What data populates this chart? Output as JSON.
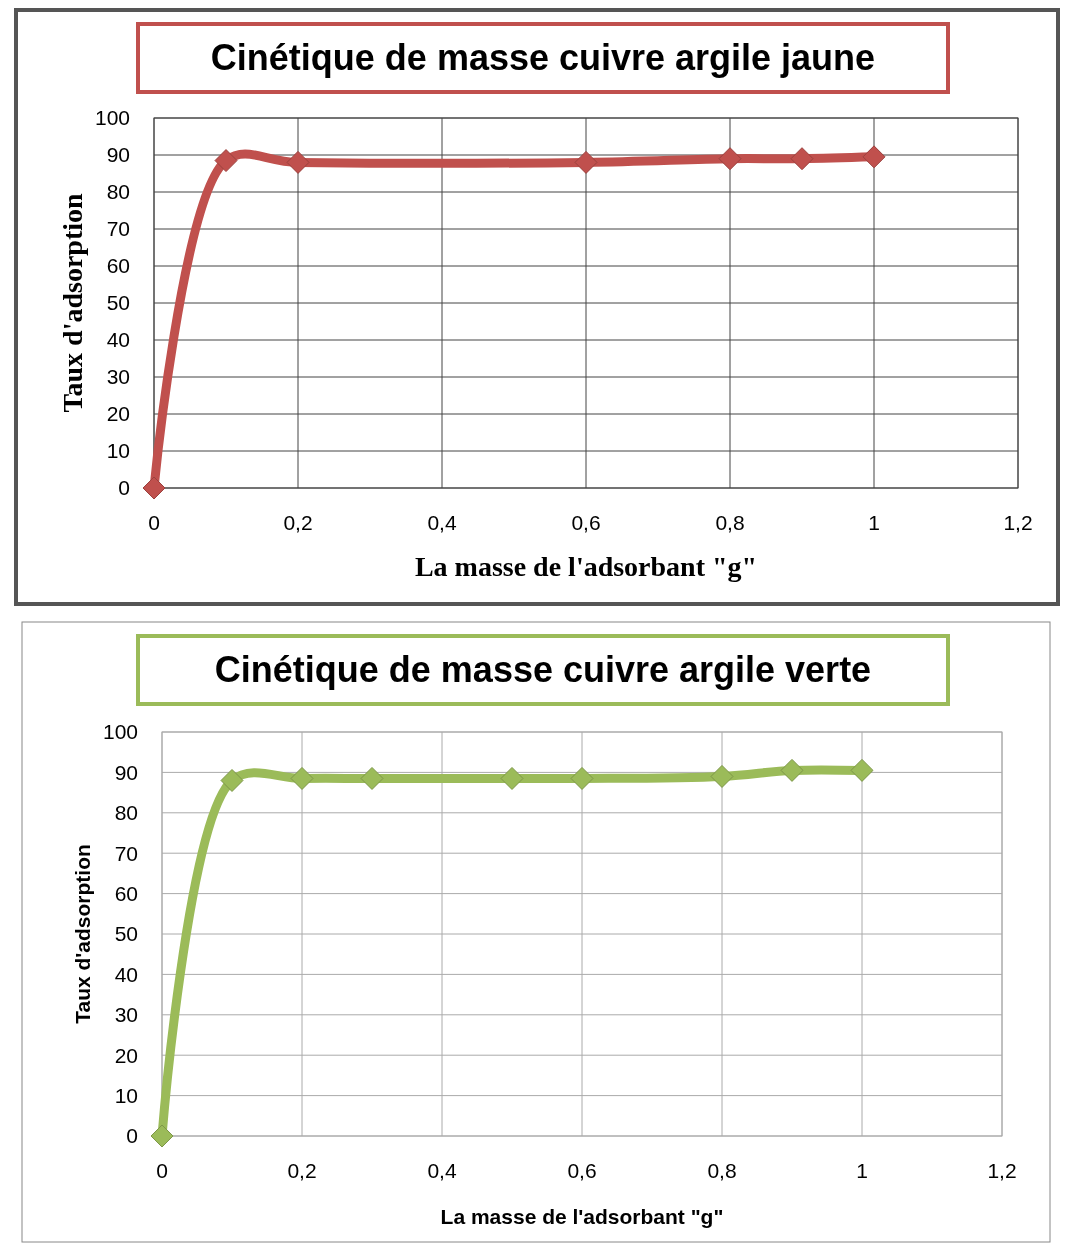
{
  "chart_data": [
    {
      "type": "line",
      "title": "Cinétique de masse cuivre argile jaune",
      "xlabel": "La masse de l'adsorbant \"g\"",
      "ylabel": "Taux d'adsorption",
      "x": [
        0,
        0.1,
        0.2,
        0.6,
        0.8,
        0.9,
        1
      ],
      "series": [
        {
          "color": "#c0504d",
          "values": [
            0,
            88.5,
            88,
            88,
            89,
            89,
            89.5
          ]
        }
      ],
      "xlim": [
        0,
        1.2
      ],
      "xticks": [
        {
          "value": 0,
          "label": "0"
        },
        {
          "value": 0.2,
          "label": "0,2"
        },
        {
          "value": 0.4,
          "label": "0,4"
        },
        {
          "value": 0.6,
          "label": "0,6"
        },
        {
          "value": 0.8,
          "label": "0,8"
        },
        {
          "value": 1,
          "label": "1"
        },
        {
          "value": 1.2,
          "label": "1,2"
        }
      ],
      "ylim": [
        0,
        100
      ],
      "yticks": [
        0,
        10,
        20,
        30,
        40,
        50,
        60,
        70,
        80,
        90,
        100
      ],
      "grid": true,
      "marker": "diamond"
    },
    {
      "type": "line",
      "title": "Cinétique de masse cuivre argile verte",
      "xlabel": "La masse de l'adsorbant \"g\"",
      "ylabel": "Taux d'adsorption",
      "x": [
        0,
        0.1,
        0.2,
        0.3,
        0.5,
        0.6,
        0.8,
        0.9,
        1
      ],
      "series": [
        {
          "color": "#9bbb59",
          "values": [
            0,
            88,
            88.5,
            88.5,
            88.5,
            88.5,
            89,
            90.5,
            90.5
          ]
        }
      ],
      "xlim": [
        0,
        1.2
      ],
      "xticks": [
        {
          "value": 0,
          "label": "0"
        },
        {
          "value": 0.2,
          "label": "0,2"
        },
        {
          "value": 0.4,
          "label": "0,4"
        },
        {
          "value": 0.6,
          "label": "0,6"
        },
        {
          "value": 0.8,
          "label": "0,8"
        },
        {
          "value": 1,
          "label": "1"
        },
        {
          "value": 1.2,
          "label": "1,2"
        }
      ],
      "ylim": [
        0,
        100
      ],
      "yticks": [
        0,
        10,
        20,
        30,
        40,
        50,
        60,
        70,
        80,
        90,
        100
      ],
      "grid": true,
      "marker": "diamond"
    }
  ]
}
